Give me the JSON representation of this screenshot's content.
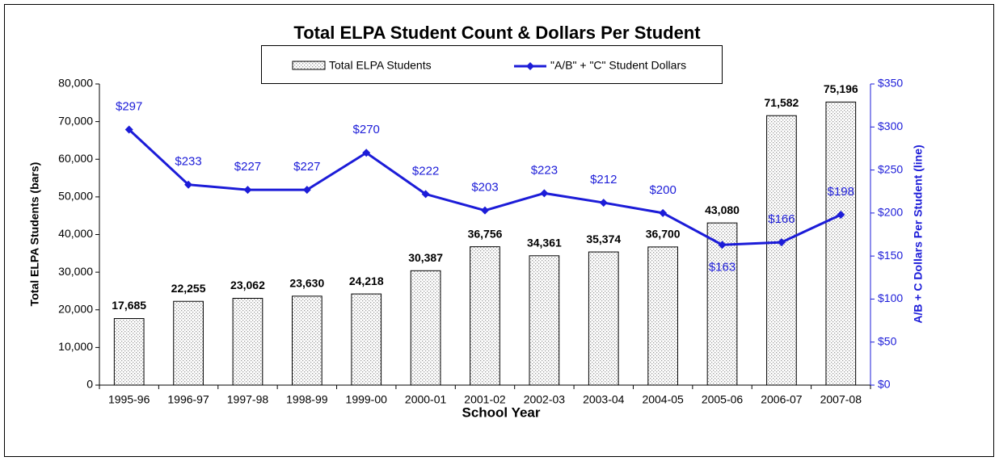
{
  "chart_data": {
    "type": "bar_line",
    "title": "Total ELPA Student Count & Dollars Per Student",
    "x_label": "School Year",
    "y_label": "Total ELPA Students (bars)",
    "y2_label": "A/B + C Dollars Per Student (line)",
    "categories": [
      "1995-96",
      "1996-97",
      "1997-98",
      "1998-99",
      "1999-00",
      "2000-01",
      "2001-02",
      "2002-03",
      "2003-04",
      "2004-05",
      "2005-06",
      "2006-07",
      "2007-08"
    ],
    "series": [
      {
        "name": "Total ELPA Students",
        "type": "bar",
        "color": "#bfbfbf",
        "values": [
          17685,
          22255,
          23062,
          23630,
          24218,
          30387,
          36756,
          34361,
          35374,
          36700,
          43080,
          71582,
          75196
        ],
        "value_labels": [
          "17,685",
          "22,255",
          "23,062",
          "23,630",
          "24,218",
          "30,387",
          "36,756",
          "34,361",
          "35,374",
          "36,700",
          "43,080",
          "71,582",
          "75,196"
        ]
      },
      {
        "name": "\"A/B\" + \"C\" Student Dollars",
        "type": "line",
        "axis": "y2",
        "color": "#1c1cd8",
        "values": [
          297,
          233,
          227,
          227,
          270,
          222,
          203,
          223,
          212,
          200,
          163,
          166,
          198
        ],
        "value_labels": [
          "$297",
          "$233",
          "$227",
          "$227",
          "$270",
          "$222",
          "$203",
          "$223",
          "$212",
          "$200",
          "$163",
          "$166",
          "$198"
        ]
      }
    ],
    "ylim": [
      0,
      80000
    ],
    "yticks": [
      {
        "value": 0,
        "label": "0"
      },
      {
        "value": 10000,
        "label": "10,000"
      },
      {
        "value": 20000,
        "label": "20,000"
      },
      {
        "value": 30000,
        "label": "30,000"
      },
      {
        "value": 40000,
        "label": "40,000"
      },
      {
        "value": 50000,
        "label": "50,000"
      },
      {
        "value": 60000,
        "label": "60,000"
      },
      {
        "value": 70000,
        "label": "70,000"
      },
      {
        "value": 80000,
        "label": "80,000"
      }
    ],
    "y2lim": [
      0,
      350
    ],
    "y2ticks": [
      {
        "value": 0,
        "label": "$0"
      },
      {
        "value": 50,
        "label": "$50"
      },
      {
        "value": 100,
        "label": "$100"
      },
      {
        "value": 150,
        "label": "$150"
      },
      {
        "value": 200,
        "label": "$200"
      },
      {
        "value": 250,
        "label": "$250"
      },
      {
        "value": 300,
        "label": "$300"
      },
      {
        "value": 350,
        "label": "$350"
      }
    ],
    "legend": "top"
  }
}
